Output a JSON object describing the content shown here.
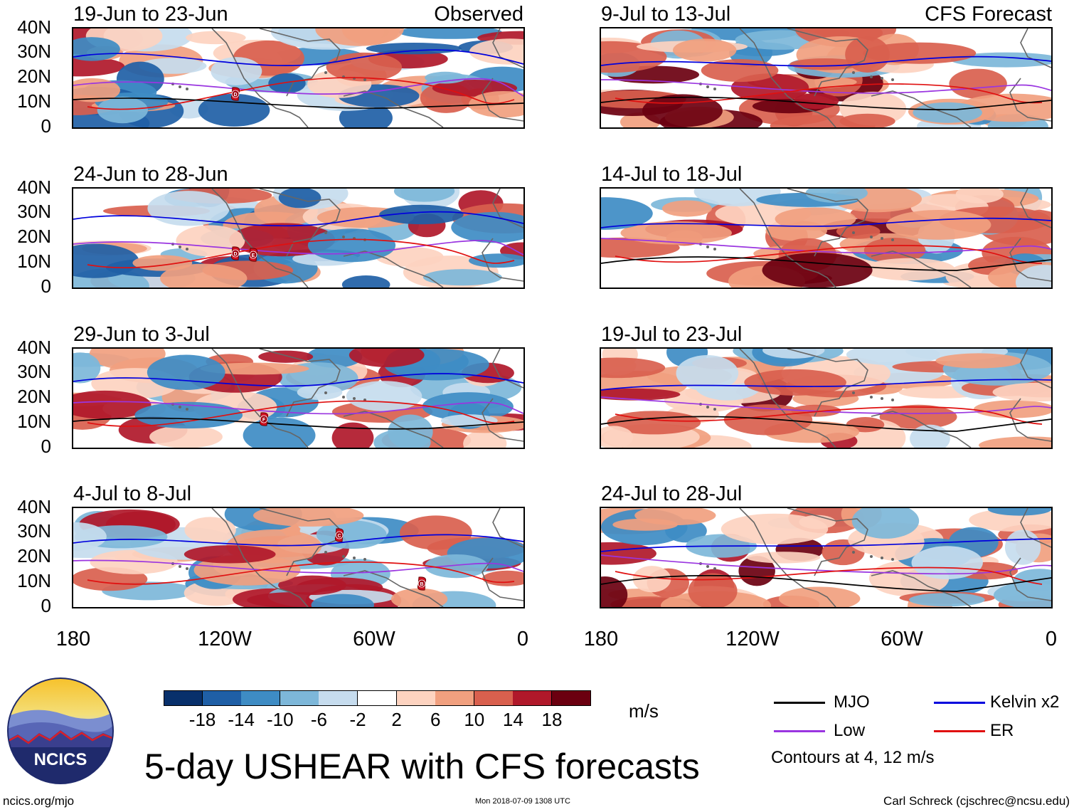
{
  "figure": {
    "title": "5-day USHEAR with CFS forecasts",
    "observed_label": "Observed",
    "forecast_label": "CFS Forecast",
    "y_ticks": [
      "40N",
      "30N",
      "20N",
      "10N",
      "0"
    ],
    "x_ticks": [
      "180",
      "120W",
      "60W",
      "0"
    ]
  },
  "panels_left": [
    {
      "date": "19-Jun to 23-Jun",
      "storms": [
        "D"
      ]
    },
    {
      "date": "24-Jun to 28-Jun",
      "storms": [
        "D",
        "E"
      ]
    },
    {
      "date": "29-Jun to 3-Jul",
      "storms": [
        "F"
      ]
    },
    {
      "date": "4-Jul to 8-Jul",
      "storms": [
        "C",
        "B"
      ]
    }
  ],
  "panels_right": [
    {
      "date": "9-Jul to 13-Jul"
    },
    {
      "date": "14-Jul to 18-Jul"
    },
    {
      "date": "19-Jul to 23-Jul"
    },
    {
      "date": "24-Jul to 28-Jul"
    }
  ],
  "colorbar": {
    "ticks": [
      "-18",
      "-14",
      "-10",
      "-6",
      "-2",
      "2",
      "6",
      "10",
      "14",
      "18"
    ],
    "units": "m/s",
    "colors": [
      "#08306b",
      "#1f5fa6",
      "#3e8cc4",
      "#7db7d9",
      "#c6dcee",
      "#ffffff",
      "#fdd3c0",
      "#f1a07f",
      "#d9604e",
      "#b0182a",
      "#6b0010"
    ]
  },
  "legend": {
    "items": [
      {
        "label": "MJO",
        "color": "#000000"
      },
      {
        "label": "Kelvin x2",
        "color": "#0000dd"
      },
      {
        "label": "Low",
        "color": "#9a35e0"
      },
      {
        "label": "ER",
        "color": "#e01010"
      }
    ],
    "note": "Contours at 4, 12 m/s"
  },
  "logo": {
    "text": "NCICS"
  },
  "footer": {
    "website": "ncics.org/mjo",
    "timestamp": "Mon 2018-07-09 1308 UTC",
    "author": "Carl Schreck (cjschrec@ncsu.edu)"
  }
}
